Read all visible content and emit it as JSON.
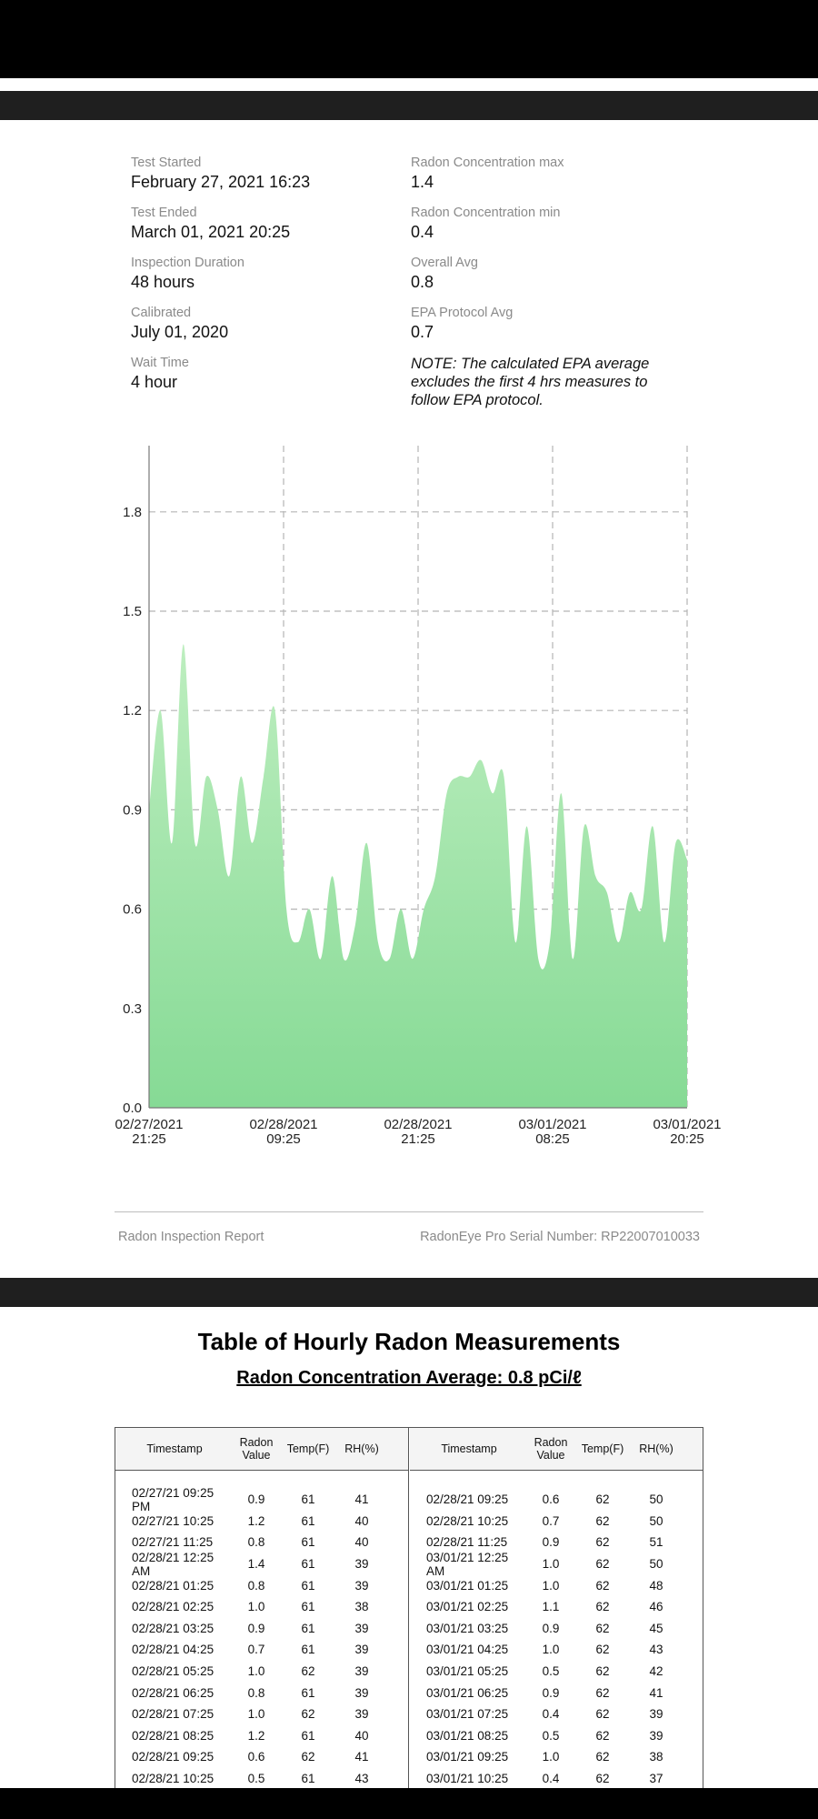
{
  "info_left": [
    {
      "label": "Test Started",
      "value": "February 27, 2021 16:23"
    },
    {
      "label": "Test Ended",
      "value": "March 01, 2021 20:25"
    },
    {
      "label": "Inspection Duration",
      "value": "48 hours"
    },
    {
      "label": "Calibrated",
      "value": "July 01, 2020"
    },
    {
      "label": "Wait Time",
      "value": "4 hour"
    }
  ],
  "info_right": [
    {
      "label": "Radon Concentration max",
      "value": "1.4"
    },
    {
      "label": "Radon Concentration min",
      "value": "0.4"
    },
    {
      "label": "Overall Avg",
      "value": "0.8"
    },
    {
      "label": "EPA Protocol Avg",
      "value": "0.7"
    }
  ],
  "note": "NOTE: The calculated EPA average excludes the first 4 hrs measures to follow EPA protocol.",
  "chart_data": {
    "type": "area",
    "y_ticks": [
      "0.0",
      "0.3",
      "0.6",
      "0.9",
      "1.2",
      "1.5",
      "1.8"
    ],
    "ylim": [
      0,
      2.0
    ],
    "x_ticks": [
      {
        "line1": "02/27/2021",
        "line2": "21:25"
      },
      {
        "line1": "02/28/2021",
        "line2": "09:25"
      },
      {
        "line1": "02/28/2021",
        "line2": "21:25"
      },
      {
        "line1": "03/01/2021",
        "line2": "08:25"
      },
      {
        "line1": "03/01/2021",
        "line2": "20:25"
      }
    ],
    "values": [
      0.9,
      1.2,
      0.8,
      1.4,
      0.8,
      1.0,
      0.9,
      0.7,
      1.0,
      0.8,
      1.0,
      1.2,
      0.6,
      0.5,
      0.6,
      0.45,
      0.7,
      0.45,
      0.55,
      0.8,
      0.5,
      0.45,
      0.6,
      0.45,
      0.6,
      0.7,
      0.95,
      1.0,
      1.0,
      1.05,
      0.95,
      1.0,
      0.5,
      0.85,
      0.45,
      0.5,
      0.95,
      0.45,
      0.85,
      0.7,
      0.65,
      0.5,
      0.65,
      0.6,
      0.85,
      0.5,
      0.8,
      0.75
    ],
    "grid": true,
    "fill_top_color": "#bdeebf",
    "fill_bottom_color": "#86da95"
  },
  "footer": {
    "left": "Radon Inspection Report",
    "right": "RadonEye Pro Serial Number: RP22007010033"
  },
  "table": {
    "title": "Table of Hourly Radon Measurements",
    "subtitle": "Radon Concentration Average: 0.8 pCi/ℓ",
    "columns": [
      "Timestamp",
      "Radon Value",
      "Temp(F)",
      "RH(%)"
    ],
    "left_rows": [
      [
        "02/27/21 09:25 PM",
        "0.9",
        "61",
        "41"
      ],
      [
        "02/27/21 10:25",
        "1.2",
        "61",
        "40"
      ],
      [
        "02/27/21 11:25",
        "0.8",
        "61",
        "40"
      ],
      [
        "02/28/21 12:25 AM",
        "1.4",
        "61",
        "39"
      ],
      [
        "02/28/21 01:25",
        "0.8",
        "61",
        "39"
      ],
      [
        "02/28/21 02:25",
        "1.0",
        "61",
        "38"
      ],
      [
        "02/28/21 03:25",
        "0.9",
        "61",
        "39"
      ],
      [
        "02/28/21 04:25",
        "0.7",
        "61",
        "39"
      ],
      [
        "02/28/21 05:25",
        "1.0",
        "62",
        "39"
      ],
      [
        "02/28/21 06:25",
        "0.8",
        "61",
        "39"
      ],
      [
        "02/28/21 07:25",
        "1.0",
        "62",
        "39"
      ],
      [
        "02/28/21 08:25",
        "1.2",
        "61",
        "40"
      ],
      [
        "02/28/21 09:25",
        "0.6",
        "62",
        "41"
      ],
      [
        "02/28/21 10:25",
        "0.5",
        "61",
        "43"
      ]
    ],
    "right_rows": [
      [
        "02/28/21 09:25",
        "0.6",
        "62",
        "50"
      ],
      [
        "02/28/21 10:25",
        "0.7",
        "62",
        "50"
      ],
      [
        "02/28/21 11:25",
        "0.9",
        "62",
        "51"
      ],
      [
        "03/01/21 12:25 AM",
        "1.0",
        "62",
        "50"
      ],
      [
        "03/01/21 01:25",
        "1.0",
        "62",
        "48"
      ],
      [
        "03/01/21 02:25",
        "1.1",
        "62",
        "46"
      ],
      [
        "03/01/21 03:25",
        "0.9",
        "62",
        "45"
      ],
      [
        "03/01/21 04:25",
        "1.0",
        "62",
        "43"
      ],
      [
        "03/01/21 05:25",
        "0.5",
        "62",
        "42"
      ],
      [
        "03/01/21 06:25",
        "0.9",
        "62",
        "41"
      ],
      [
        "03/01/21 07:25",
        "0.4",
        "62",
        "39"
      ],
      [
        "03/01/21 08:25",
        "0.5",
        "62",
        "39"
      ],
      [
        "03/01/21 09:25",
        "1.0",
        "62",
        "38"
      ],
      [
        "03/01/21 10:25",
        "0.4",
        "62",
        "37"
      ]
    ]
  }
}
